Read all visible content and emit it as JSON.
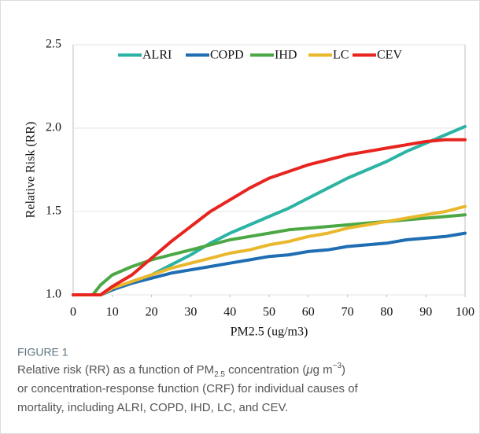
{
  "chart_data": {
    "type": "line",
    "x_label": "PM2.5 (ug/m3)",
    "y_label": "Relative Risk (RR)",
    "x": [
      0,
      5,
      7,
      10,
      15,
      20,
      25,
      30,
      35,
      40,
      45,
      50,
      55,
      60,
      65,
      70,
      75,
      80,
      85,
      90,
      95,
      100
    ],
    "series": [
      {
        "name": "ALRI",
        "color": "#2bb3a3",
        "values": [
          1.0,
          1.0,
          1.0,
          1.03,
          1.08,
          1.12,
          1.18,
          1.24,
          1.31,
          1.37,
          1.42,
          1.47,
          1.52,
          1.58,
          1.64,
          1.7,
          1.75,
          1.8,
          1.86,
          1.91,
          1.96,
          2.01
        ]
      },
      {
        "name": "COPD",
        "color": "#1f6db3",
        "values": [
          1.0,
          1.0,
          1.0,
          1.03,
          1.07,
          1.1,
          1.13,
          1.15,
          1.17,
          1.19,
          1.21,
          1.23,
          1.24,
          1.26,
          1.27,
          1.29,
          1.3,
          1.31,
          1.33,
          1.34,
          1.35,
          1.37
        ]
      },
      {
        "name": "IHD",
        "color": "#4ca845",
        "values": [
          1.0,
          1.0,
          1.06,
          1.12,
          1.17,
          1.21,
          1.24,
          1.27,
          1.3,
          1.33,
          1.35,
          1.37,
          1.39,
          1.4,
          1.41,
          1.42,
          1.43,
          1.44,
          1.45,
          1.46,
          1.47,
          1.48
        ]
      },
      {
        "name": "LC",
        "color": "#e9b82c",
        "values": [
          1.0,
          1.0,
          1.0,
          1.04,
          1.08,
          1.12,
          1.16,
          1.19,
          1.22,
          1.25,
          1.27,
          1.3,
          1.32,
          1.35,
          1.37,
          1.4,
          1.42,
          1.44,
          1.46,
          1.48,
          1.5,
          1.53
        ]
      },
      {
        "name": "CEV",
        "color": "#e8241f",
        "values": [
          1.0,
          1.0,
          1.0,
          1.05,
          1.12,
          1.22,
          1.32,
          1.41,
          1.5,
          1.57,
          1.64,
          1.7,
          1.74,
          1.78,
          1.81,
          1.84,
          1.86,
          1.88,
          1.9,
          1.92,
          1.93,
          1.93
        ]
      }
    ],
    "xlim": [
      0,
      100
    ],
    "xticks": [
      0,
      10,
      20,
      30,
      40,
      50,
      60,
      70,
      80,
      90,
      100
    ],
    "ylim": [
      1.0,
      2.5
    ],
    "yticks": [
      {
        "value": 1.0,
        "label": "1.0"
      },
      {
        "value": 1.5,
        "label": "1.5"
      },
      {
        "value": 2.0,
        "label": "2.0"
      },
      {
        "value": 2.5,
        "label": "2.5"
      }
    ],
    "grid": true,
    "legend": "top"
  },
  "caption": {
    "label": "FIGURE 1",
    "lines": [
      [
        {
          "text": "Relative risk (RR) as a function of PM"
        },
        {
          "text": "2.5",
          "style": "sub"
        },
        {
          "text": " concentration ("
        },
        {
          "text": "μ",
          "style": "italic"
        },
        {
          "text": "g m"
        },
        {
          "text": "−3",
          "style": "sup"
        },
        {
          "text": ")"
        }
      ],
      [
        {
          "text": "or concentration-response function (CRF) for individual causes of"
        }
      ],
      [
        {
          "text": "mortality, including ALRI, COPD, IHD, LC, and CEV."
        }
      ]
    ]
  }
}
